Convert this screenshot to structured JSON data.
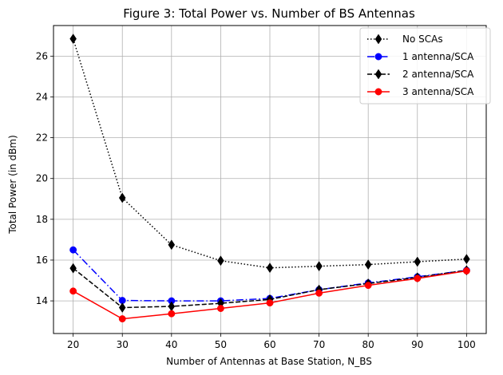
{
  "chart_data": {
    "type": "line",
    "title": "Figure 3: Total Power vs. Number of BS Antennas",
    "xlabel": "Number of Antennas at Base Station, N_BS",
    "ylabel": "Total Power (in dBm)",
    "x": [
      20,
      30,
      40,
      50,
      60,
      70,
      80,
      90,
      100
    ],
    "xlim": [
      16,
      104
    ],
    "ylim": [
      12.4,
      27.5
    ],
    "xticks": [
      20,
      30,
      40,
      50,
      60,
      70,
      80,
      90,
      100
    ],
    "yticks": [
      14,
      16,
      18,
      20,
      22,
      24,
      26
    ],
    "grid": true,
    "legend_position": "top-right",
    "series": [
      {
        "name": "No SCAs",
        "values": [
          26.85,
          19.05,
          16.75,
          15.97,
          15.62,
          15.7,
          15.78,
          15.92,
          16.05
        ],
        "color": "#000000",
        "line_style": "dotted",
        "marker": "diamond"
      },
      {
        "name": "1 antenna/SCA",
        "values": [
          16.5,
          14.02,
          14.0,
          14.0,
          14.12,
          14.55,
          14.88,
          15.18,
          15.5
        ],
        "color": "#0000ff",
        "line_style": "dashdot",
        "marker": "circle"
      },
      {
        "name": "2 antenna/SCA",
        "values": [
          15.6,
          13.67,
          13.73,
          13.88,
          14.07,
          14.55,
          14.85,
          15.15,
          15.5
        ],
        "color": "#000000",
        "line_style": "dashed",
        "marker": "diamond"
      },
      {
        "name": "3 antenna/SCA",
        "values": [
          14.48,
          13.12,
          13.37,
          13.63,
          13.9,
          14.38,
          14.76,
          15.1,
          15.47
        ],
        "color": "#ff0000",
        "line_style": "solid",
        "marker": "circle"
      }
    ]
  }
}
